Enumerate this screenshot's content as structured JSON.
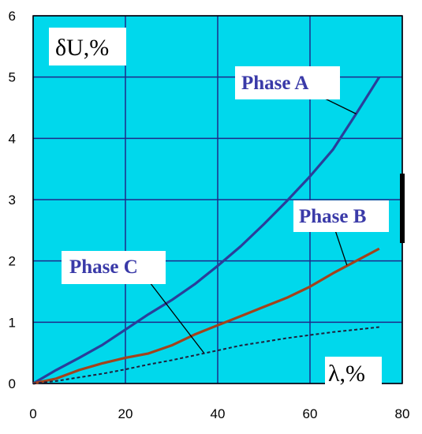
{
  "chart_data": {
    "type": "line",
    "ylabel": "δU,%",
    "xlabel": "λ,%",
    "xlim": [
      0,
      80
    ],
    "ylim": [
      0,
      6
    ],
    "x_ticks": [
      "0",
      "20",
      "40",
      "60",
      "80"
    ],
    "y_ticks": [
      "0",
      "1",
      "2",
      "3",
      "4",
      "5",
      "6"
    ],
    "grid": true,
    "background_color": "#00d8ec",
    "series": [
      {
        "name": "Phase A",
        "color": "#2a3e9a",
        "style": "solid",
        "x": [
          0,
          5,
          10,
          15,
          20,
          25,
          30,
          35,
          40,
          45,
          50,
          55,
          60,
          65,
          70,
          75
        ],
        "y": [
          0,
          0.22,
          0.42,
          0.63,
          0.88,
          1.13,
          1.36,
          1.62,
          1.92,
          2.24,
          2.6,
          2.98,
          3.38,
          3.82,
          4.4,
          5.0
        ]
      },
      {
        "name": "Phase B",
        "color": "#a3421b",
        "style": "solid",
        "x": [
          0,
          5,
          10,
          15,
          20,
          25,
          30,
          35,
          40,
          45,
          50,
          55,
          60,
          65,
          70,
          75
        ],
        "y": [
          0,
          0.08,
          0.22,
          0.33,
          0.42,
          0.49,
          0.62,
          0.8,
          0.95,
          1.1,
          1.25,
          1.4,
          1.58,
          1.8,
          2.0,
          2.2
        ]
      },
      {
        "name": "Phase C",
        "color": "#1f1f3a",
        "style": "dashed",
        "x": [
          0,
          5,
          10,
          15,
          20,
          25,
          30,
          35,
          40,
          45,
          50,
          55,
          60,
          65,
          70,
          75
        ],
        "y": [
          0,
          0.04,
          0.1,
          0.16,
          0.23,
          0.31,
          0.38,
          0.46,
          0.54,
          0.62,
          0.68,
          0.74,
          0.79,
          0.84,
          0.88,
          0.92
        ]
      }
    ]
  }
}
